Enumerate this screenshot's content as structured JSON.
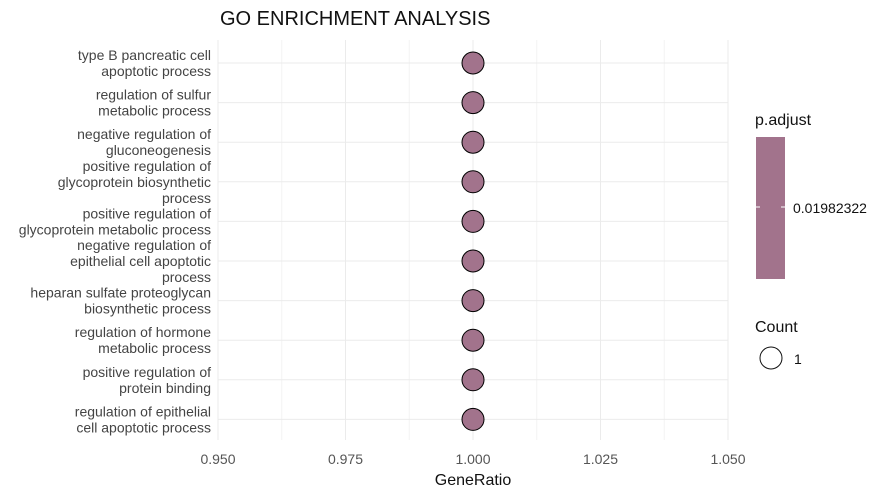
{
  "chart_data": {
    "type": "scatter",
    "title": "GO ENRICHMENT ANALYSIS",
    "xlabel": "GeneRatio",
    "ylabel": "",
    "xlim": [
      0.95,
      1.05
    ],
    "x_ticks": [
      "0.950",
      "0.975",
      "1.000",
      "1.025",
      "1.050"
    ],
    "x_tick_values": [
      0.95,
      0.975,
      1.0,
      1.025,
      1.05
    ],
    "categories": [
      "type B pancreatic cell apoptotic process",
      "regulation of sulfur metabolic process",
      "negative regulation of gluconeogenesis",
      "positive regulation of glycoprotein biosynthetic process",
      "positive regulation of glycoprotein metabolic process",
      "negative regulation of epithelial cell apoptotic process",
      "heparan sulfate proteoglycan biosynthetic process",
      "regulation of hormone metabolic process",
      "positive regulation of protein binding",
      "regulation of epithelial cell apoptotic process"
    ],
    "category_label_lines": [
      [
        "type B pancreatic cell",
        "apoptotic process"
      ],
      [
        "regulation of sulfur",
        "metabolic process"
      ],
      [
        "negative regulation of",
        "gluconeogenesis"
      ],
      [
        "positive regulation of",
        "glycoprotein biosynthetic",
        "process"
      ],
      [
        "positive regulation of",
        "glycoprotein metabolic process"
      ],
      [
        "negative regulation of",
        "epithelial cell apoptotic",
        "process"
      ],
      [
        "heparan sulfate proteoglycan",
        "biosynthetic process"
      ],
      [
        "regulation of hormone",
        "metabolic process"
      ],
      [
        "positive regulation of",
        "protein binding"
      ],
      [
        "regulation of epithelial",
        "cell apoptotic process"
      ]
    ],
    "x": [
      1,
      1,
      1,
      1,
      1,
      1,
      1,
      1,
      1,
      1
    ],
    "count": [
      1,
      1,
      1,
      1,
      1,
      1,
      1,
      1,
      1,
      1
    ],
    "p_adjust": [
      0.01982322,
      0.01982322,
      0.01982322,
      0.01982322,
      0.01982322,
      0.01982322,
      0.01982322,
      0.01982322,
      0.01982322,
      0.01982322
    ],
    "point_color": "#a2738c",
    "grid": true,
    "legend_position": "right",
    "legend": {
      "color_title": "p.adjust",
      "color_label": "0.01982322",
      "size_title": "Count",
      "size_label": "1"
    }
  }
}
